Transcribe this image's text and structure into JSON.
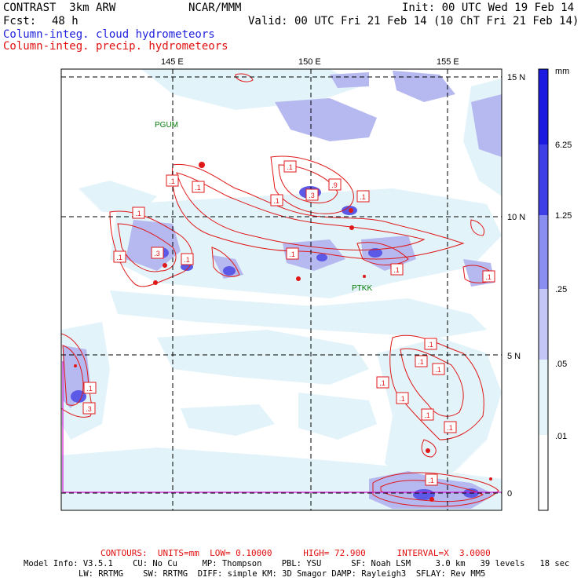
{
  "header": {
    "title_left": "CONTRAST  3km ARW",
    "title_center": "NCAR/MMM",
    "init": "Init: 00 UTC Wed 19 Feb 14",
    "fcst_label": "Fcst:",
    "fcst_value": "48 h",
    "valid": "Valid: 00 UTC Fri 21 Feb 14 (10 ChT Fri 21 Feb 14)",
    "field_cloud": "Column-integ. cloud hydrometeors",
    "field_precip": "Column-integ. precip. hydrometeors"
  },
  "axes": {
    "lon_labels": [
      "145 E",
      "150 E",
      "155 E"
    ],
    "lat_labels": [
      "15 N",
      "10 N",
      "5 N",
      "0"
    ]
  },
  "stations": [
    "PGUM",
    "PTKK"
  ],
  "contour_labels": [
    ".1",
    ".1",
    ".1",
    ".1",
    ".1",
    ".1",
    ".1",
    ".1",
    ".1",
    ".1",
    ".1",
    ".1",
    ".1",
    ".1",
    ".1",
    ".1",
    ".1",
    ".1",
    ".1",
    ".1",
    ".3",
    ".3",
    ".3",
    ".9"
  ],
  "colorbar": {
    "unit": "mm",
    "labels": [
      "6.25",
      "1.25",
      ".25",
      ".05",
      ".01"
    ],
    "colors": [
      "#1a1ae0",
      "#3f3fe8",
      "#6a6ae8",
      "#9a9af0",
      "#c4c4f6",
      "#e4f4fa",
      "#ffffff"
    ]
  },
  "footer": {
    "contours": "CONTOURS:  UNITS=mm  LOW= 0.10000      HIGH= 72.900      INTERVAL=X  3.0000",
    "model_line1": "Model Info: V3.5.1    CU: No Cu     MP: Thompson    PBL: YSU      SF: Noah LSM     3.0 km   39 levels   18 sec",
    "model_line2": "LW: RRTMG    SW: RRTMG  DIFF: simple KM: 3D Smagor DAMP: Rayleigh3  SFLAY: Rev MM5"
  }
}
